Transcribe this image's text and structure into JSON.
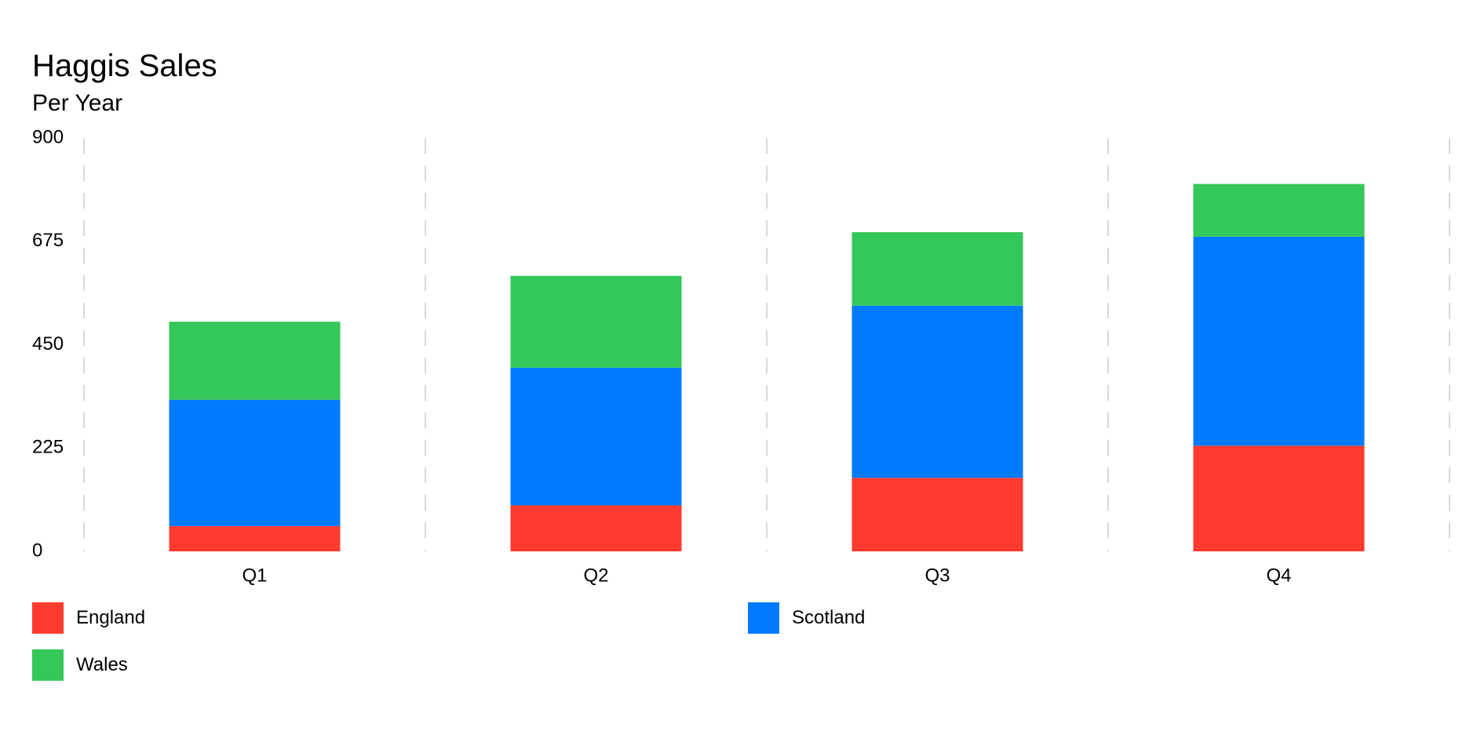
{
  "chart_data": {
    "type": "bar",
    "stacked": true,
    "title": "Haggis Sales",
    "subtitle": "Per Year",
    "categories": [
      "Q1",
      "Q2",
      "Q3",
      "Q4"
    ],
    "ylim": [
      0,
      900
    ],
    "yticks": [
      "0",
      "225",
      "450",
      "675",
      "900"
    ],
    "grid": "vertical dashed",
    "legend_position": "bottom",
    "series": [
      {
        "name": "England",
        "color": "#FF3B30",
        "values": [
          55,
          100,
          160,
          230
        ]
      },
      {
        "name": "Scotland",
        "color": "#007AFF",
        "values": [
          275,
          300,
          375,
          455
        ]
      },
      {
        "name": "Wales",
        "color": "#34C759",
        "values": [
          170,
          200,
          160,
          115
        ]
      }
    ]
  }
}
